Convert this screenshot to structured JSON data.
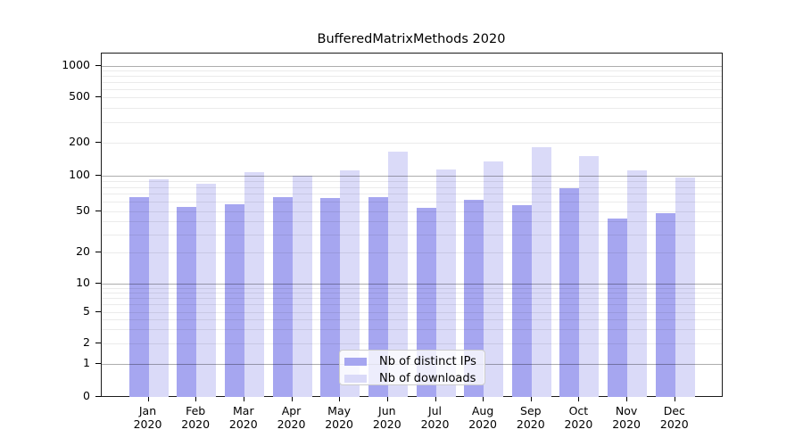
{
  "title": "BufferedMatrixMethods 2020",
  "chart_data": {
    "type": "bar",
    "title": "BufferedMatrixMethods 2020",
    "categories": [
      "Jan 2020",
      "Feb 2020",
      "Mar 2020",
      "Apr 2020",
      "May 2020",
      "Jun 2020",
      "Jul 2020",
      "Aug 2020",
      "Sep 2020",
      "Oct 2020",
      "Nov 2020",
      "Dec 2020"
    ],
    "series": [
      {
        "name": "Nb of distinct IPs",
        "color": "#a6a6f0",
        "values": [
          66,
          54,
          57,
          66,
          64,
          66,
          53,
          62,
          56,
          78,
          42,
          48
        ]
      },
      {
        "name": "Nb of downloads",
        "color": "#dadaf8",
        "values": [
          93,
          85,
          108,
          101,
          112,
          167,
          113,
          135,
          182,
          152,
          112,
          97
        ]
      }
    ],
    "y_ticks": [
      0,
      1,
      2,
      5,
      10,
      20,
      50,
      100,
      200,
      500,
      1000
    ],
    "ylim": [
      0,
      1000
    ],
    "yscale": "log-like (0,1,2,5,10,20,50,100,200,500,1000)",
    "grid": true,
    "legend_position": "lower center"
  }
}
